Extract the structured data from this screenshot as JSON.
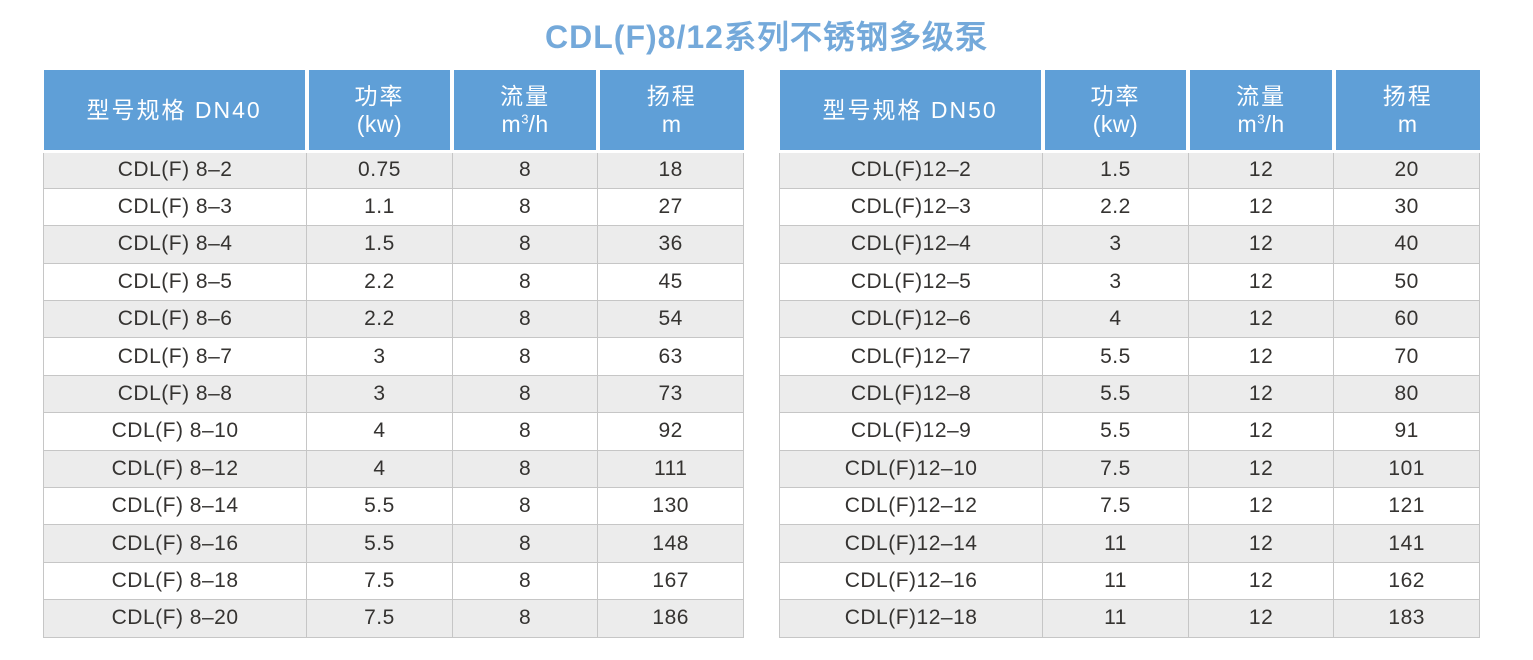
{
  "page": {
    "title": "CDL(F)8/12系列不锈钢多级泵"
  },
  "colors": {
    "title_text": "#74a9da",
    "header_bg": "#5f9fd7",
    "header_text": "#ffffff",
    "row_alt_bg": "#ececec",
    "row_bg": "#ffffff",
    "cell_border": "#c6c6c6",
    "body_text": "#353331"
  },
  "tables": [
    {
      "headers": {
        "model": "型号规格 DN40",
        "power_line1": "功率",
        "power_line2": "(kw)",
        "flow_line1": "流量",
        "flow_unit_base": "m",
        "flow_unit_sup": "3",
        "flow_unit_rest": "/h",
        "head_line1": "扬程",
        "head_line2": "m"
      },
      "rows": [
        {
          "model": "CDL(F) 8–2",
          "power": "0.75",
          "flow": "8",
          "head": "18"
        },
        {
          "model": "CDL(F) 8–3",
          "power": "1.1",
          "flow": "8",
          "head": "27"
        },
        {
          "model": "CDL(F) 8–4",
          "power": "1.5",
          "flow": "8",
          "head": "36"
        },
        {
          "model": "CDL(F) 8–5",
          "power": "2.2",
          "flow": "8",
          "head": "45"
        },
        {
          "model": "CDL(F) 8–6",
          "power": "2.2",
          "flow": "8",
          "head": "54"
        },
        {
          "model": "CDL(F) 8–7",
          "power": "3",
          "flow": "8",
          "head": "63"
        },
        {
          "model": "CDL(F) 8–8",
          "power": "3",
          "flow": "8",
          "head": "73"
        },
        {
          "model": "CDL(F) 8–10",
          "power": "4",
          "flow": "8",
          "head": "92"
        },
        {
          "model": "CDL(F) 8–12",
          "power": "4",
          "flow": "8",
          "head": "111"
        },
        {
          "model": "CDL(F) 8–14",
          "power": "5.5",
          "flow": "8",
          "head": "130"
        },
        {
          "model": "CDL(F) 8–16",
          "power": "5.5",
          "flow": "8",
          "head": "148"
        },
        {
          "model": "CDL(F) 8–18",
          "power": "7.5",
          "flow": "8",
          "head": "167"
        },
        {
          "model": "CDL(F) 8–20",
          "power": "7.5",
          "flow": "8",
          "head": "186"
        }
      ]
    },
    {
      "headers": {
        "model": "型号规格 DN50",
        "power_line1": "功率",
        "power_line2": "(kw)",
        "flow_line1": "流量",
        "flow_unit_base": "m",
        "flow_unit_sup": "3",
        "flow_unit_rest": "/h",
        "head_line1": "扬程",
        "head_line2": "m"
      },
      "rows": [
        {
          "model": "CDL(F)12–2",
          "power": "1.5",
          "flow": "12",
          "head": "20"
        },
        {
          "model": "CDL(F)12–3",
          "power": "2.2",
          "flow": "12",
          "head": "30"
        },
        {
          "model": "CDL(F)12–4",
          "power": "3",
          "flow": "12",
          "head": "40"
        },
        {
          "model": "CDL(F)12–5",
          "power": "3",
          "flow": "12",
          "head": "50"
        },
        {
          "model": "CDL(F)12–6",
          "power": "4",
          "flow": "12",
          "head": "60"
        },
        {
          "model": "CDL(F)12–7",
          "power": "5.5",
          "flow": "12",
          "head": "70"
        },
        {
          "model": "CDL(F)12–8",
          "power": "5.5",
          "flow": "12",
          "head": "80"
        },
        {
          "model": "CDL(F)12–9",
          "power": "5.5",
          "flow": "12",
          "head": "91"
        },
        {
          "model": "CDL(F)12–10",
          "power": "7.5",
          "flow": "12",
          "head": "101"
        },
        {
          "model": "CDL(F)12–12",
          "power": "7.5",
          "flow": "12",
          "head": "121"
        },
        {
          "model": "CDL(F)12–14",
          "power": "11",
          "flow": "12",
          "head": "141"
        },
        {
          "model": "CDL(F)12–16",
          "power": "11",
          "flow": "12",
          "head": "162"
        },
        {
          "model": "CDL(F)12–18",
          "power": "11",
          "flow": "12",
          "head": "183"
        }
      ]
    }
  ]
}
